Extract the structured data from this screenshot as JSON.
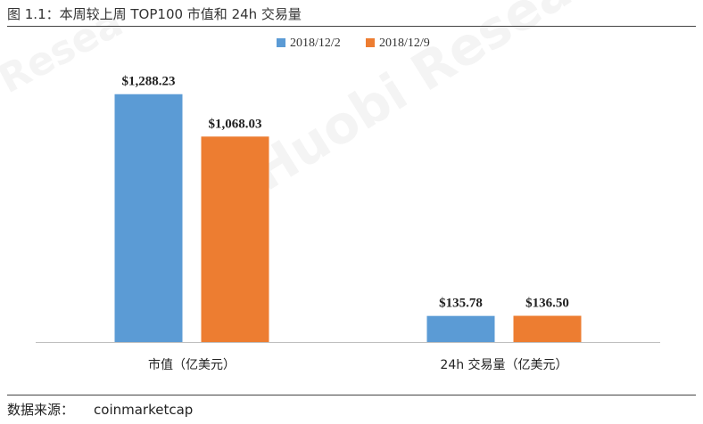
{
  "figure": {
    "title": "图 1.1：本周较上周 TOP100 市值和 24h 交易量",
    "source_label": "数据来源：",
    "source_value": "coinmarketcap",
    "watermark_main": "Huobi Research",
    "watermark_side": "Resea"
  },
  "colors": {
    "series_1": "#5B9BD5",
    "series_2": "#ED7D31",
    "axis": "#bfbfbf"
  },
  "chart_data": {
    "type": "bar",
    "categories": [
      "市值（亿美元）",
      "24h 交易量（亿美元）"
    ],
    "series": [
      {
        "name": "2018/12/2",
        "values": [
          1288.23,
          135.78
        ],
        "labels": [
          "$1,288.23",
          "$135.78"
        ]
      },
      {
        "name": "2018/12/9",
        "values": [
          1068.03,
          136.5
        ],
        "labels": [
          "$1,068.03",
          "$136.50"
        ]
      }
    ],
    "ylim": [
      0,
      1500
    ],
    "grid": false,
    "legend_position": "top-center",
    "xlabel": "",
    "ylabel": ""
  }
}
